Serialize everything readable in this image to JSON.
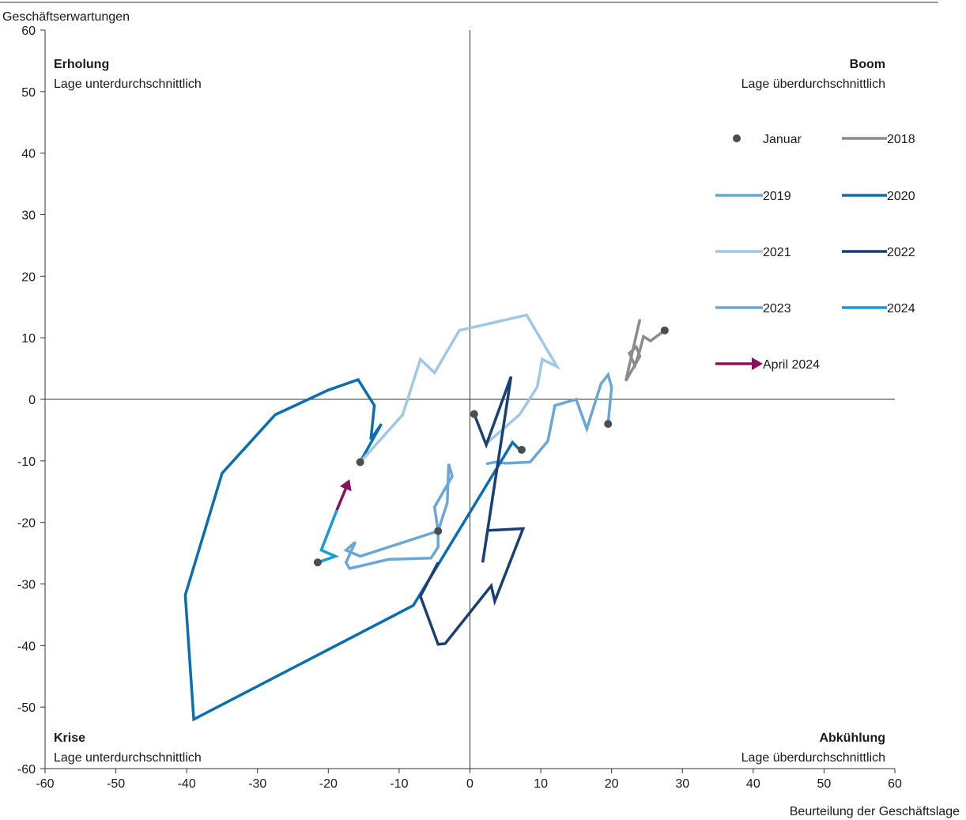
{
  "chart_data": {
    "type": "line",
    "title": "",
    "xlabel": "Beurteilung der Geschäftslage",
    "ylabel": "Geschäftserwartungen",
    "xlim": [
      -60,
      60
    ],
    "ylim": [
      -60,
      60
    ],
    "x_ticks": [
      "-60",
      "-50",
      "-40",
      "-30",
      "-20",
      "-10",
      "0",
      "10",
      "20",
      "30",
      "40",
      "50",
      "60"
    ],
    "y_ticks": [
      "60",
      "50",
      "40",
      "30",
      "20",
      "10",
      "0",
      "-10",
      "-20",
      "-30",
      "-40",
      "-50",
      "-60"
    ],
    "quadrants": {
      "top_left": {
        "title": "Erholung",
        "subtitle": "Lage unterdurchschnittlich"
      },
      "top_right": {
        "title": "Boom",
        "subtitle": "Lage überdurchschnittlich"
      },
      "bottom_left": {
        "title": "Krise",
        "subtitle": "Lage unterdurchschnittlich"
      },
      "bottom_right": {
        "title": "Abkühlung",
        "subtitle": "Lage überdurchschnittlich"
      }
    },
    "legend": {
      "placement": "right",
      "january_label": "Januar",
      "arrow_label": "April 2024"
    },
    "series": [
      {
        "name": "2018",
        "color": "#8c8c8c",
        "points": [
          [
            27.5,
            11.2
          ],
          [
            25.5,
            9.5
          ],
          [
            24.5,
            10.2
          ],
          [
            24.0,
            8.0
          ],
          [
            23.3,
            5.5
          ],
          [
            22.5,
            7.5
          ],
          [
            23.5,
            8.5
          ],
          [
            24.0,
            7.0
          ],
          [
            22.0,
            3.0
          ],
          [
            24.0,
            13.0
          ]
        ]
      },
      {
        "name": "2019",
        "color": "#6aa7d6",
        "points": [
          [
            19.5,
            -4.0
          ],
          [
            20.0,
            2.0
          ],
          [
            19.5,
            4.0
          ],
          [
            18.5,
            2.5
          ],
          [
            16.5,
            -4.8
          ],
          [
            15.0,
            0.0
          ],
          [
            12.0,
            -1.0
          ],
          [
            11.0,
            -6.8
          ],
          [
            8.5,
            -10.2
          ],
          [
            5.0,
            -10.4
          ],
          [
            3.5,
            -10.2
          ],
          [
            2.3,
            -10.5
          ]
        ]
      },
      {
        "name": "2020",
        "color": "#0a6eaf",
        "points": [
          [
            -15.5,
            -10.2
          ],
          [
            -12.5,
            -4.0
          ],
          [
            -14.0,
            -6.5
          ],
          [
            -13.5,
            -1.0
          ],
          [
            -15.8,
            3.2
          ],
          [
            -20.0,
            1.5
          ],
          [
            -27.5,
            -2.5
          ],
          [
            -35.0,
            -12.0
          ],
          [
            -40.2,
            -31.8
          ],
          [
            -39.0,
            -52.0
          ],
          [
            -8.0,
            -33.5
          ],
          [
            6.0,
            -7.0
          ],
          [
            7.3,
            -8.5
          ]
        ]
      },
      {
        "name": "2021",
        "color": "#9ec8e6",
        "points": [
          [
            -15.5,
            -10.2
          ],
          [
            -9.5,
            -2.5
          ],
          [
            -7.0,
            6.5
          ],
          [
            -5.0,
            4.3
          ],
          [
            -1.5,
            11.2
          ],
          [
            8.0,
            13.7
          ],
          [
            12.3,
            5.3
          ],
          [
            10.2,
            6.5
          ],
          [
            9.5,
            2.0
          ],
          [
            7.0,
            -2.5
          ],
          [
            2.2,
            -7.3
          ]
        ]
      },
      {
        "name": "2022",
        "color": "#1a3f76",
        "points": [
          [
            0.6,
            -2.4
          ],
          [
            2.3,
            -7.4
          ],
          [
            5.8,
            3.7
          ],
          [
            1.8,
            -26.5
          ],
          [
            2.5,
            -21.3
          ],
          [
            7.5,
            -21.0
          ],
          [
            3.5,
            -32.8
          ],
          [
            3.0,
            -30.3
          ],
          [
            -3.5,
            -39.7
          ],
          [
            -4.5,
            -39.8
          ],
          [
            -7.0,
            -32.0
          ],
          [
            -4.5,
            -26.5
          ]
        ]
      },
      {
        "name": "2023",
        "color": "#6aa7d6",
        "points": [
          [
            -4.5,
            -21.4
          ],
          [
            -4.5,
            -24.0
          ],
          [
            -5.5,
            -25.8
          ],
          [
            -11.5,
            -26.0
          ],
          [
            -17.0,
            -27.5
          ],
          [
            -17.5,
            -26.5
          ],
          [
            -16.2,
            -23.2
          ],
          [
            -17.5,
            -24.5
          ],
          [
            -15.5,
            -25.5
          ],
          [
            -4.5,
            -21.4
          ],
          [
            -5.0,
            -17.5
          ],
          [
            -2.5,
            -12.5
          ],
          [
            -3.0,
            -10.5
          ],
          [
            -3.2,
            -16.8
          ],
          [
            -4.5,
            -21.4
          ]
        ]
      },
      {
        "name": "2024",
        "color": "#159bd7",
        "points": [
          [
            -21.5,
            -26.5
          ],
          [
            -19.0,
            -25.5
          ],
          [
            -21.0,
            -24.5
          ],
          [
            -18.8,
            -18.0
          ]
        ]
      }
    ],
    "january_points": [
      [
        27.5,
        11.2
      ],
      [
        19.5,
        -4.0
      ],
      [
        -15.5,
        -10.2
      ],
      [
        0.6,
        -2.4
      ],
      [
        7.3,
        -8.2
      ],
      [
        -4.5,
        -21.4
      ],
      [
        -21.5,
        -26.5
      ]
    ],
    "april_2024_arrow": {
      "color": "#8a1161",
      "from": [
        -18.8,
        -18.0
      ],
      "to": [
        -17.0,
        -13.0
      ]
    },
    "january_color": "#4d4d4d"
  }
}
